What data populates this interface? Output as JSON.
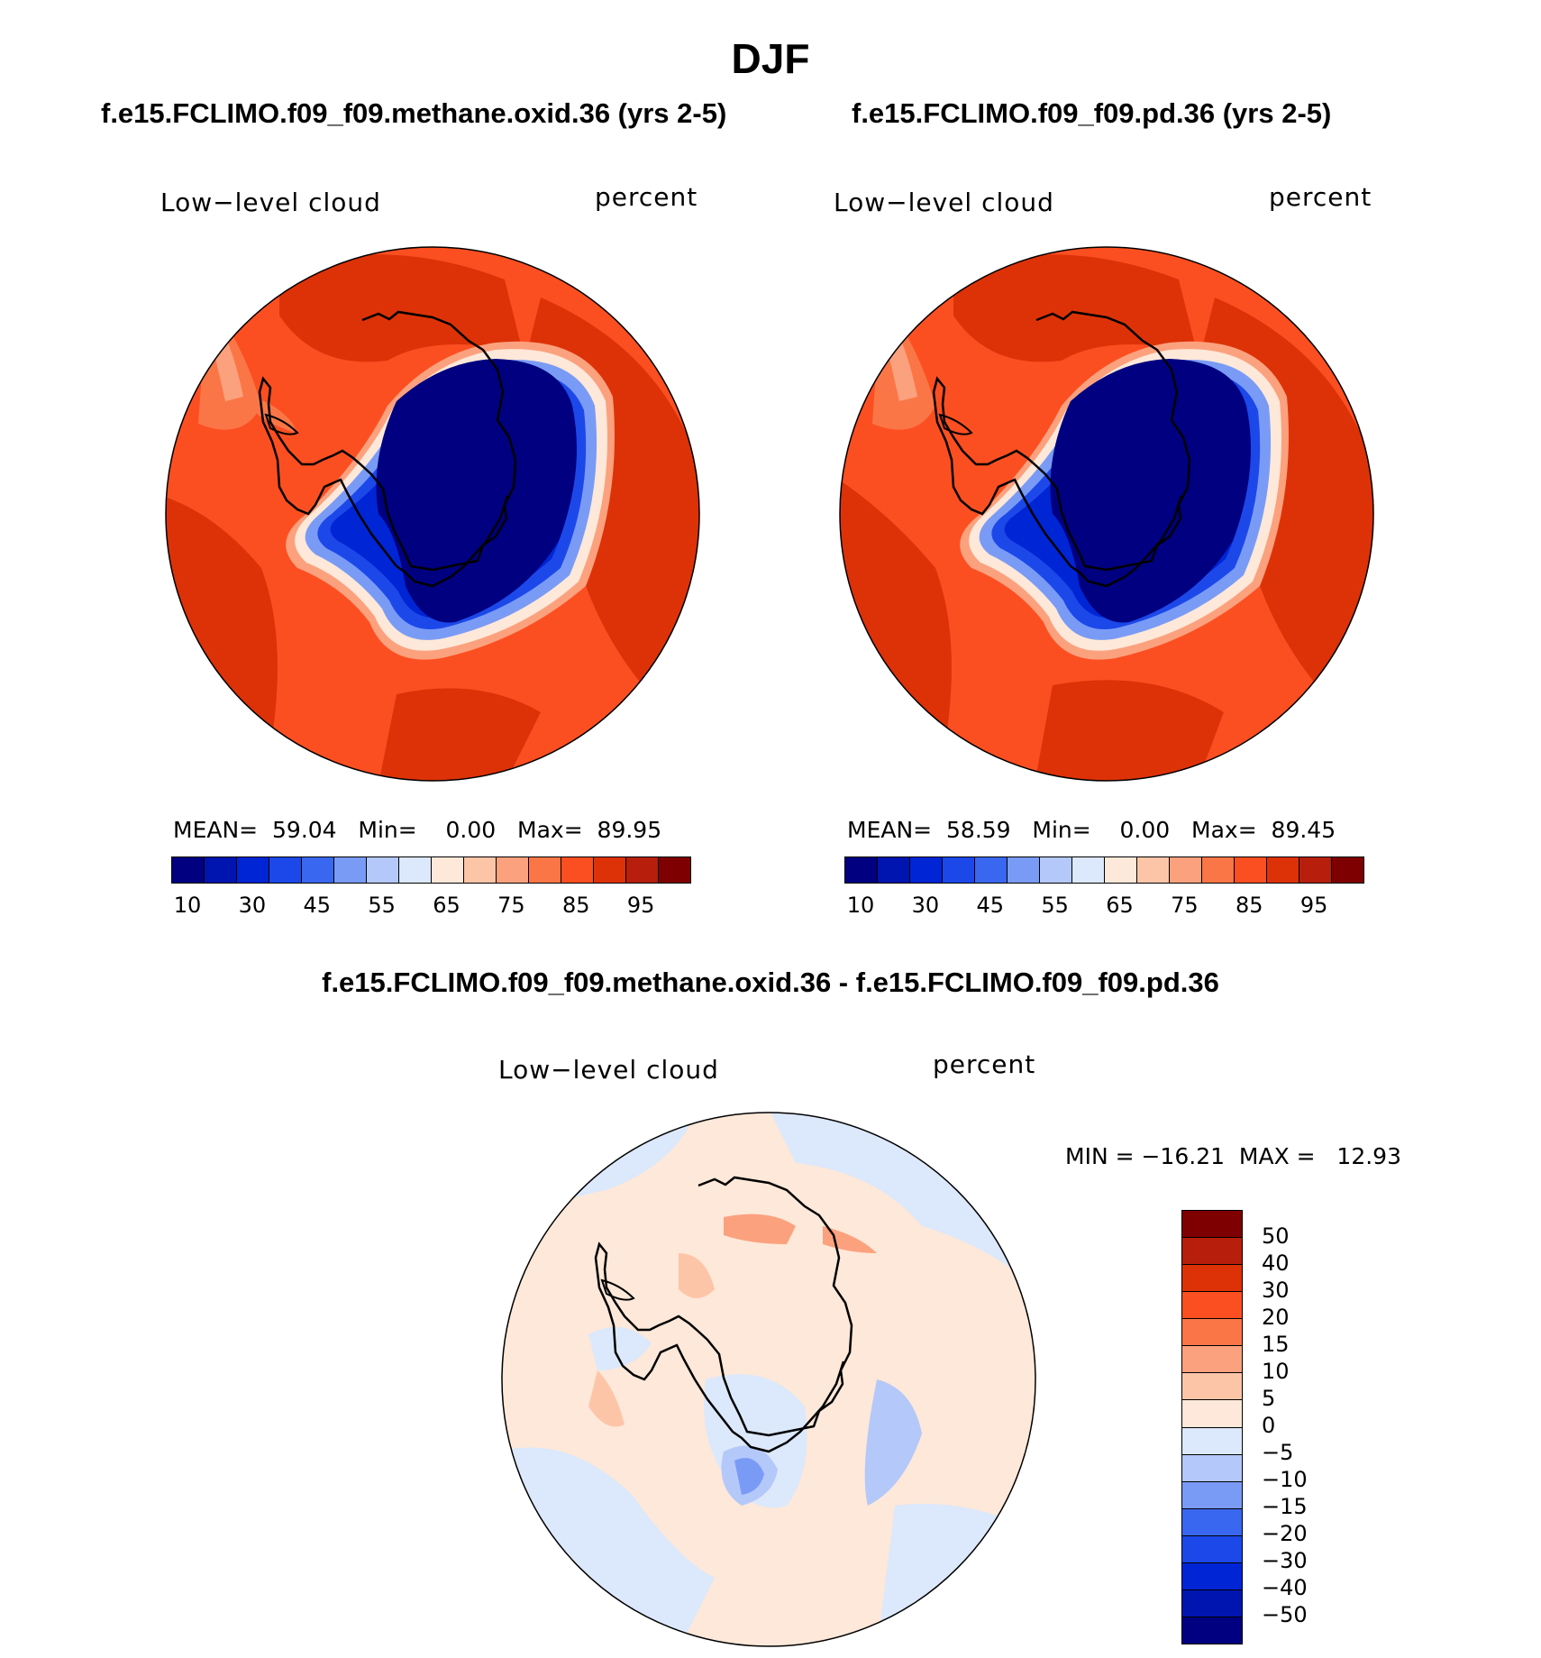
{
  "title": "DJF",
  "panels": [
    {
      "case": "f.e15.FCLIMO.f09_f09.methane.oxid.36 (yrs 2-5)",
      "variable": "Low−level cloud",
      "units": "percent",
      "stats": "MEAN=  59.04   Min=    0.00   Max=  89.95"
    },
    {
      "case": "f.e15.FCLIMO.f09_f09.pd.36 (yrs 2-5)",
      "variable": "Low−level cloud",
      "units": "percent",
      "stats": "MEAN=  58.59   Min=    0.00   Max=  89.45"
    }
  ],
  "diff": {
    "title": "f.e15.FCLIMO.f09_f09.methane.oxid.36 - f.e15.FCLIMO.f09_f09.pd.36",
    "variable": "Low−level cloud",
    "units": "percent",
    "stats": "MIN = −16.21  MAX =   12.93"
  },
  "colorbar_abs": {
    "colors": [
      "#000080",
      "#0015b0",
      "#0025d5",
      "#1c48ea",
      "#3a67f0",
      "#7a9bf5",
      "#b4c8fa",
      "#dce8fb",
      "#fde8d9",
      "#fdc5a8",
      "#fca17e",
      "#fb7647",
      "#fc4f21",
      "#dd3208",
      "#b71f0c",
      "#7e0000"
    ],
    "labels": [
      "10",
      "30",
      "45",
      "55",
      "65",
      "75",
      "85",
      "95"
    ]
  },
  "colorbar_diff": {
    "colors": [
      "#7e0000",
      "#b71f0c",
      "#dd3208",
      "#fc4f21",
      "#fb7647",
      "#fca17e",
      "#fdc5a8",
      "#fde8d9",
      "#dce8fb",
      "#b4c8fa",
      "#7a9bf5",
      "#3a67f0",
      "#1c48ea",
      "#0025d5",
      "#0015b0",
      "#000080"
    ],
    "labels": [
      "50",
      "40",
      "30",
      "20",
      "15",
      "10",
      "5",
      "0",
      "−5",
      "−10",
      "−15",
      "−20",
      "−30",
      "−40",
      "−50"
    ]
  }
}
